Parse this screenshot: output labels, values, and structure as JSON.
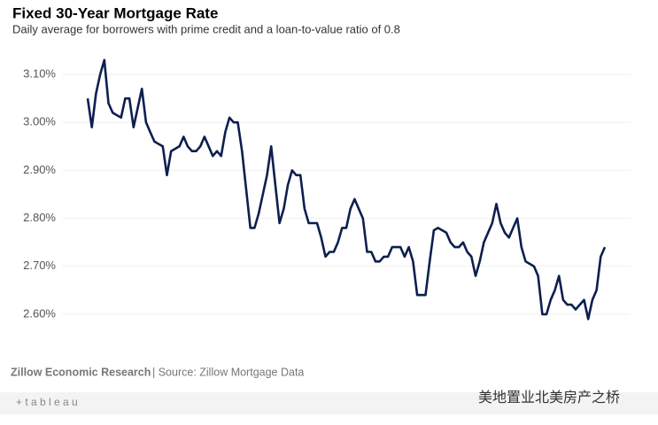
{
  "chart_data": {
    "type": "line",
    "title": "Fixed 30-Year Mortgage Rate",
    "subtitle": "Daily average for borrowers with prime credit and a loan-to-value ratio of 0.8",
    "categories": [
      null,
      null,
      null,
      null,
      null,
      null,
      null,
      null,
      null,
      null,
      null,
      null,
      null,
      null,
      null,
      null,
      null,
      null,
      null,
      null,
      null,
      null,
      null,
      null,
      null,
      null,
      null,
      null,
      null,
      null,
      null,
      null,
      null,
      null,
      null,
      null,
      null,
      null,
      null,
      null,
      null,
      null,
      null,
      null,
      null,
      null,
      null,
      null,
      null,
      null,
      null,
      null,
      null,
      null,
      null,
      null,
      null,
      null,
      null,
      null,
      null,
      null,
      null,
      null,
      null,
      null,
      null,
      null,
      null,
      null,
      null,
      null,
      null,
      null,
      null,
      null,
      null,
      null,
      null,
      null,
      null,
      null,
      null,
      null,
      null,
      null,
      null,
      null,
      null,
      null,
      null,
      null,
      null,
      null,
      null,
      null,
      null,
      null,
      null,
      null,
      null,
      null,
      null,
      null,
      null,
      null,
      null,
      null,
      null,
      null,
      null,
      null,
      null,
      null,
      null,
      null,
      null,
      null,
      null,
      null,
      null,
      null,
      null,
      null,
      null
    ],
    "values": [
      3.05,
      2.99,
      3.06,
      3.1,
      3.13,
      3.04,
      3.02,
      3.015,
      3.01,
      3.05,
      3.05,
      2.99,
      3.03,
      3.07,
      3.0,
      2.98,
      2.96,
      2.955,
      2.95,
      2.89,
      2.94,
      2.945,
      2.95,
      2.97,
      2.95,
      2.94,
      2.94,
      2.95,
      2.97,
      2.95,
      2.93,
      2.94,
      2.93,
      2.98,
      3.01,
      3.0,
      3.0,
      2.94,
      2.86,
      2.78,
      2.78,
      2.81,
      2.85,
      2.89,
      2.95,
      2.87,
      2.79,
      2.82,
      2.87,
      2.9,
      2.89,
      2.89,
      2.82,
      2.79,
      2.79,
      2.79,
      2.76,
      2.72,
      2.73,
      2.73,
      2.75,
      2.78,
      2.78,
      2.82,
      2.84,
      2.82,
      2.8,
      2.73,
      2.73,
      2.71,
      2.71,
      2.72,
      2.72,
      2.74,
      2.74,
      2.74,
      2.72,
      2.74,
      2.71,
      2.64,
      2.64,
      2.64,
      2.71,
      2.775,
      2.78,
      2.775,
      2.77,
      2.75,
      2.74,
      2.74,
      2.75,
      2.73,
      2.72,
      2.68,
      2.71,
      2.75,
      2.77,
      2.79,
      2.83,
      2.79,
      2.77,
      2.76,
      2.78,
      2.8,
      2.74,
      2.71,
      2.705,
      2.7,
      2.68,
      2.6,
      2.6,
      2.63,
      2.65,
      2.68,
      2.63,
      2.62,
      2.62,
      2.61,
      2.62,
      2.63,
      2.59,
      2.63,
      2.65,
      2.72,
      2.74
    ],
    "color": "#0d1f4f",
    "ylim": [
      2.55,
      3.15
    ],
    "yticks": [
      {
        "value": 2.6,
        "label": "2.60%"
      },
      {
        "value": 2.7,
        "label": "2.70%"
      },
      {
        "value": 2.8,
        "label": "2.80%"
      },
      {
        "value": 2.9,
        "label": "2.90%"
      },
      {
        "value": 3.0,
        "label": "3.00%"
      },
      {
        "value": 3.1,
        "label": "3.10%"
      }
    ],
    "grid": true
  },
  "footer": {
    "organization": "Zillow Economic Research",
    "source": "| Source: Zillow Mortgage Data",
    "logo": "+ t a b l e a u",
    "watermark": "美地置业北美房产之桥"
  }
}
